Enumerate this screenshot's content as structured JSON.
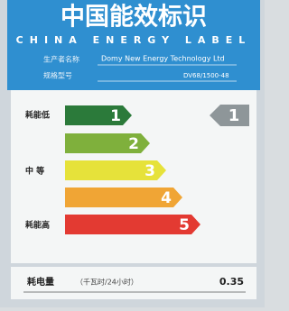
{
  "header": {
    "title": "中国能效标识",
    "subtitle": "CHINA ENERGY LABEL"
  },
  "info": {
    "maker_label": "生产者名称",
    "maker": "Domy New Energy Technology Ltd",
    "model_label": "规格型号",
    "model": "DV68/1500-48"
  },
  "scale": {
    "low": "耗能低",
    "mid": "中 等",
    "high": "耗能高",
    "grades": [
      "1",
      "2",
      "3",
      "4",
      "5"
    ],
    "indicator": "1"
  },
  "consumption": {
    "label": "耗电量",
    "unit": "（千瓦时/24小时）",
    "value": "0.35"
  }
}
